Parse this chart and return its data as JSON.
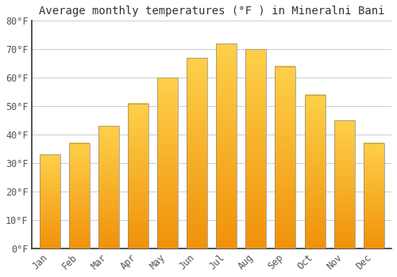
{
  "title": "Average monthly temperatures (°F ) in Mineralni Bani",
  "months": [
    "Jan",
    "Feb",
    "Mar",
    "Apr",
    "May",
    "Jun",
    "Jul",
    "Aug",
    "Sep",
    "Oct",
    "Nov",
    "Dec"
  ],
  "values": [
    33,
    37,
    43,
    51,
    60,
    67,
    72,
    70,
    64,
    54,
    45,
    37
  ],
  "bar_color_top": "#FFD04A",
  "bar_color_bottom": "#F0920A",
  "bar_edge_color": "#888888",
  "ylim": [
    0,
    80
  ],
  "yticks": [
    0,
    10,
    20,
    30,
    40,
    50,
    60,
    70,
    80
  ],
  "background_color": "#FFFFFF",
  "grid_color": "#CCCCCC",
  "title_fontsize": 10,
  "tick_fontsize": 8.5,
  "bar_width": 0.7
}
